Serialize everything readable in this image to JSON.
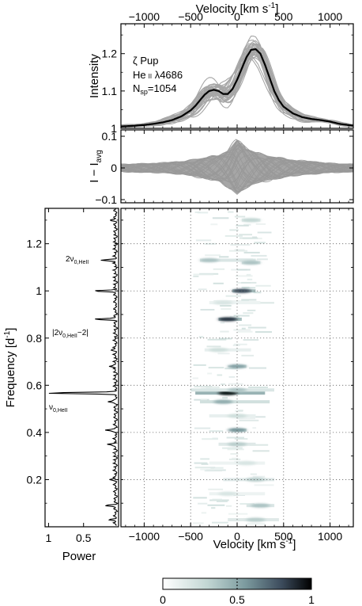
{
  "chart_data": [
    {
      "type": "line",
      "panel": "mean-profile",
      "xlabel": "Velocity [km s",
      "xlabel_sup": "-1",
      "xlabel_close": "]",
      "ylabel": "Intensity",
      "xlim": [
        -1250,
        1250
      ],
      "ylim": [
        1.0,
        1.28
      ],
      "x_ticks": [
        -1000,
        -500,
        0,
        500,
        1000
      ],
      "x_tick_labels": [
        "−1000",
        "−500",
        "0",
        "500",
        "1000"
      ],
      "y_ticks": [
        1.0,
        1.1,
        1.2
      ],
      "y_tick_labels": [
        "1",
        "1.1",
        "1.2"
      ],
      "annotations": {
        "star": "ζ Pup",
        "line_pre": "He",
        "line_ion": "II",
        "line_post": " λ4686",
        "nsp_pre": "N",
        "nsp_sub": "sp",
        "nsp_post": "=1054"
      },
      "series": [
        {
          "role": "mean",
          "x": [
            -1250,
            -1100,
            -1000,
            -900,
            -800,
            -700,
            -600,
            -500,
            -450,
            -400,
            -350,
            -300,
            -250,
            -200,
            -150,
            -100,
            -50,
            0,
            50,
            100,
            150,
            200,
            250,
            300,
            350,
            400,
            450,
            500,
            600,
            700,
            800,
            900,
            1000,
            1100,
            1250
          ],
          "y": [
            1.005,
            1.007,
            1.009,
            1.012,
            1.016,
            1.022,
            1.032,
            1.048,
            1.06,
            1.075,
            1.09,
            1.1,
            1.103,
            1.1,
            1.092,
            1.092,
            1.105,
            1.13,
            1.16,
            1.19,
            1.21,
            1.212,
            1.2,
            1.17,
            1.135,
            1.1,
            1.075,
            1.058,
            1.04,
            1.03,
            1.025,
            1.022,
            1.018,
            1.012,
            1.007
          ]
        }
      ]
    },
    {
      "type": "line",
      "panel": "residuals",
      "ylabel": "I − I",
      "ylabel_sub": "avg",
      "xlim": [
        -1250,
        1250
      ],
      "ylim": [
        -0.11,
        0.12
      ],
      "y_ticks": [
        -0.1,
        0,
        0.1
      ],
      "y_tick_labels": [
        "−0.1",
        "0",
        "0.1"
      ],
      "envelope": {
        "x": [
          -1250,
          -1000,
          -800,
          -600,
          -500,
          -400,
          -300,
          -200,
          -100,
          0,
          100,
          200,
          300,
          400,
          500,
          600,
          800,
          1000,
          1250
        ],
        "upper": [
          0.012,
          0.014,
          0.016,
          0.02,
          0.025,
          0.03,
          0.035,
          0.04,
          0.055,
          0.09,
          0.06,
          0.05,
          0.04,
          0.035,
          0.03,
          0.025,
          0.02,
          0.015,
          0.012
        ],
        "lower": [
          -0.012,
          -0.014,
          -0.016,
          -0.02,
          -0.025,
          -0.03,
          -0.035,
          -0.042,
          -0.06,
          -0.085,
          -0.06,
          -0.05,
          -0.042,
          -0.035,
          -0.03,
          -0.025,
          -0.02,
          -0.015,
          -0.012
        ]
      }
    },
    {
      "type": "heatmap",
      "panel": "frequency-map",
      "xlabel": "Velocity [km s",
      "xlabel_sup": "-1",
      "xlabel_close": "]",
      "xlim": [
        -1250,
        1250
      ],
      "ylim": [
        0,
        1.35
      ],
      "x_ticks": [
        -1000,
        -500,
        0,
        500,
        1000
      ],
      "x_tick_labels": [
        "−1000",
        "−500",
        "0",
        "500",
        "1000"
      ],
      "colorbar": {
        "ticks": [
          0,
          0.5,
          1
        ],
        "tick_labels": [
          "0",
          "0.5",
          "1"
        ]
      },
      "features": [
        {
          "f": 0.567,
          "v0": -450,
          "v1": 300,
          "peak": -100,
          "amp": 1.0
        },
        {
          "f": 0.88,
          "v0": -200,
          "v1": 50,
          "peak": -100,
          "amp": 0.9
        },
        {
          "f": 1.0,
          "v0": -50,
          "v1": 200,
          "peak": 50,
          "amp": 0.85
        },
        {
          "f": 0.41,
          "v0": -50,
          "v1": 100,
          "peak": 0,
          "amp": 0.6
        },
        {
          "f": 0.68,
          "v0": -50,
          "v1": 100,
          "peak": 0,
          "amp": 0.55
        },
        {
          "f": 1.13,
          "v0": -400,
          "v1": 200,
          "peak": -300,
          "amp": 0.4
        },
        {
          "f": 1.12,
          "v0": 50,
          "v1": 250,
          "peak": 150,
          "amp": 0.4
        },
        {
          "f": 0.53,
          "v0": -400,
          "v1": 350,
          "peak": -150,
          "amp": 0.5
        },
        {
          "f": 0.35,
          "v0": -200,
          "v1": 200,
          "peak": 0,
          "amp": 0.35
        },
        {
          "f": 0.2,
          "v0": -150,
          "v1": 400,
          "peak": 200,
          "amp": 0.35
        },
        {
          "f": 0.09,
          "v0": 100,
          "v1": 400,
          "peak": 250,
          "amp": 0.4
        },
        {
          "f": 0.03,
          "v0": -100,
          "v1": 450,
          "peak": 200,
          "amp": 0.35
        },
        {
          "f": 1.3,
          "v0": 50,
          "v1": 250,
          "peak": 150,
          "amp": 0.3
        },
        {
          "f": 0.75,
          "v0": -350,
          "v1": 150,
          "peak": -200,
          "amp": 0.25
        },
        {
          "f": 0.58,
          "v0": -500,
          "v1": 400,
          "peak": 0,
          "amp": 0.4
        },
        {
          "f": 0.47,
          "v0": -300,
          "v1": 200,
          "peak": 0,
          "amp": 0.25
        },
        {
          "f": 0.95,
          "v0": -300,
          "v1": 250,
          "peak": -150,
          "amp": 0.2
        },
        {
          "f": 0.27,
          "v0": -300,
          "v1": 300,
          "peak": 100,
          "amp": 0.2
        },
        {
          "f": 0.14,
          "v0": -300,
          "v1": 300,
          "peak": -100,
          "amp": 0.2
        }
      ]
    },
    {
      "type": "line",
      "panel": "power-spectrum",
      "xlabel": "Power",
      "ylabel": "Frequency [d",
      "ylabel_sup": "-1",
      "ylabel_close": "]",
      "xlim": [
        1.05,
        0.0
      ],
      "ylim": [
        0,
        1.35
      ],
      "x_ticks": [
        1,
        0.5
      ],
      "x_tick_labels": [
        "1",
        "0.5"
      ],
      "y_ticks": [
        0.2,
        0.4,
        0.6,
        0.8,
        1.0,
        1.2
      ],
      "y_tick_labels": [
        "0.2",
        "0.4",
        "0.6",
        "0.8",
        "1",
        "1.2"
      ],
      "peaks": [
        {
          "f": 0.567,
          "power": 1.0
        },
        {
          "f": 1.0,
          "power": 0.32
        },
        {
          "f": 0.88,
          "power": 0.3
        },
        {
          "f": 1.13,
          "power": 0.22
        },
        {
          "f": 0.41,
          "power": 0.15
        },
        {
          "f": 0.68,
          "power": 0.12
        },
        {
          "f": 0.35,
          "power": 0.13
        },
        {
          "f": 0.09,
          "power": 0.14
        },
        {
          "f": 0.2,
          "power": 0.1
        },
        {
          "f": 0.53,
          "power": 0.11
        },
        {
          "f": 1.3,
          "power": 0.09
        },
        {
          "f": 0.75,
          "power": 0.08
        },
        {
          "f": 0.03,
          "power": 0.1
        }
      ],
      "annotations": {
        "label_2nu": "2ν",
        "label_2nu_sub": "0,HeII",
        "label_abs_pre": "|2ν",
        "label_abs_sub": "0,HeII",
        "label_abs_post": "−2|",
        "label_nu": "ν",
        "label_nu_sub": "0,HeII"
      }
    }
  ]
}
